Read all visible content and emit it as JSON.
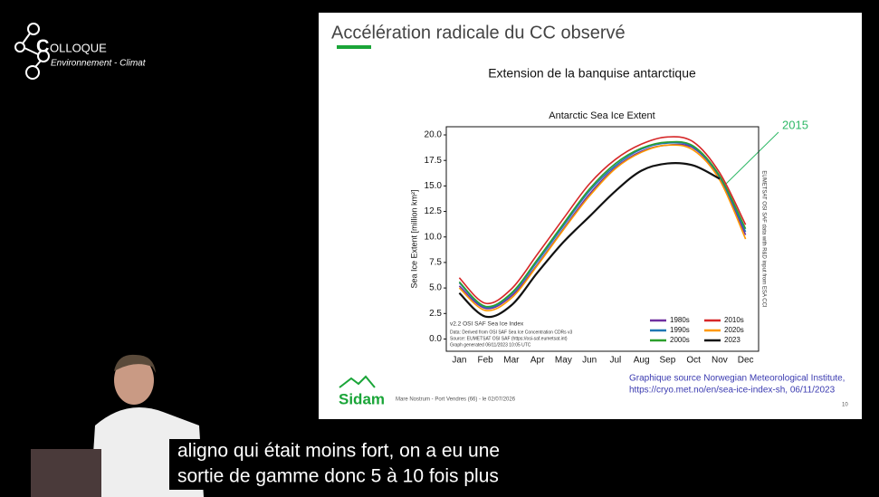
{
  "logo": {
    "title": "OLLOQUE",
    "initial": "C",
    "subtitle": "Environnement - Climat"
  },
  "slide": {
    "title": "Accélération radicale du CC observé",
    "subtitle": "Extension de la banquise antarctique",
    "source": [
      "Graphique source Norwegian Meteorological Institute,",
      "https://cryo.met.no/en/sea-ice-index-sh, 06/11/2023"
    ],
    "brand": "Sidam",
    "footer": "Mare Nostrum - Port Vendres (66) - le 02/07/2026",
    "page": "10"
  },
  "captions": [
    "aligno qui était moins fort, on a eu une",
    "sortie de gamme donc 5 à 10 fois plus"
  ],
  "chart_data": {
    "type": "line",
    "title": "Antarctic Sea Ice Extent",
    "y_label": "Sea Ice Extent [million km²]",
    "annotation": "2015",
    "notes": [
      "v2.2 OSI SAF Sea Ice Index",
      "Data: Derived from OSI SAF Sea Ice Concentration CDRs v3",
      "Source: EUMETSAT OSI SAF (https://osi-saf.eumetsat.int)",
      "Graph generated 06/11/2023 10:05 UTC"
    ],
    "side_note": "EUMETSAT OSI SAF data with R&D input from ESA CCI",
    "categories": [
      "Jan",
      "Feb",
      "Mar",
      "Apr",
      "May",
      "Jun",
      "Jul",
      "Aug",
      "Sep",
      "Oct",
      "Nov",
      "Dec"
    ],
    "ylim": [
      -1.2,
      20.8
    ],
    "yticks": [
      {
        "value": 0,
        "label": "0.0"
      },
      2.5,
      {
        "value": 5,
        "label": "5.0"
      },
      7.5,
      {
        "value": 10,
        "label": "10.0"
      },
      12.5,
      {
        "value": 15,
        "label": "15.0"
      },
      17.5,
      {
        "value": 20,
        "label": "20.0"
      }
    ],
    "grid": false,
    "legend": "lower right",
    "series": [
      {
        "name": "1980s",
        "color": "#7030a0",
        "values": [
          5.2,
          3.0,
          4.2,
          7.3,
          10.8,
          14.2,
          16.8,
          18.4,
          19.0,
          18.7,
          15.8,
          10.2
        ]
      },
      {
        "name": "1990s",
        "color": "#1f77b4",
        "values": [
          5.5,
          3.1,
          4.4,
          7.6,
          11.1,
          14.5,
          17.0,
          18.6,
          19.2,
          18.8,
          15.9,
          10.5
        ]
      },
      {
        "name": "2000s",
        "color": "#2ca02c",
        "values": [
          5.6,
          3.2,
          4.5,
          7.8,
          11.3,
          14.7,
          17.2,
          18.7,
          19.3,
          18.9,
          16.0,
          10.8
        ]
      },
      {
        "name": "2010s",
        "color": "#d62728",
        "values": [
          6.0,
          3.5,
          4.9,
          8.3,
          11.8,
          15.2,
          17.6,
          19.1,
          19.8,
          19.3,
          16.3,
          11.2
        ]
      },
      {
        "name": "2020s",
        "color": "#ff9900",
        "values": [
          5.0,
          2.8,
          4.0,
          7.2,
          10.7,
          14.0,
          16.7,
          18.3,
          19.0,
          18.5,
          15.6,
          9.8
        ]
      },
      {
        "name": "2023",
        "color": "#111111",
        "values": [
          4.5,
          2.2,
          3.3,
          6.5,
          9.5,
          12.0,
          14.5,
          16.5,
          17.2,
          17.0,
          15.7,
          null
        ]
      }
    ]
  }
}
